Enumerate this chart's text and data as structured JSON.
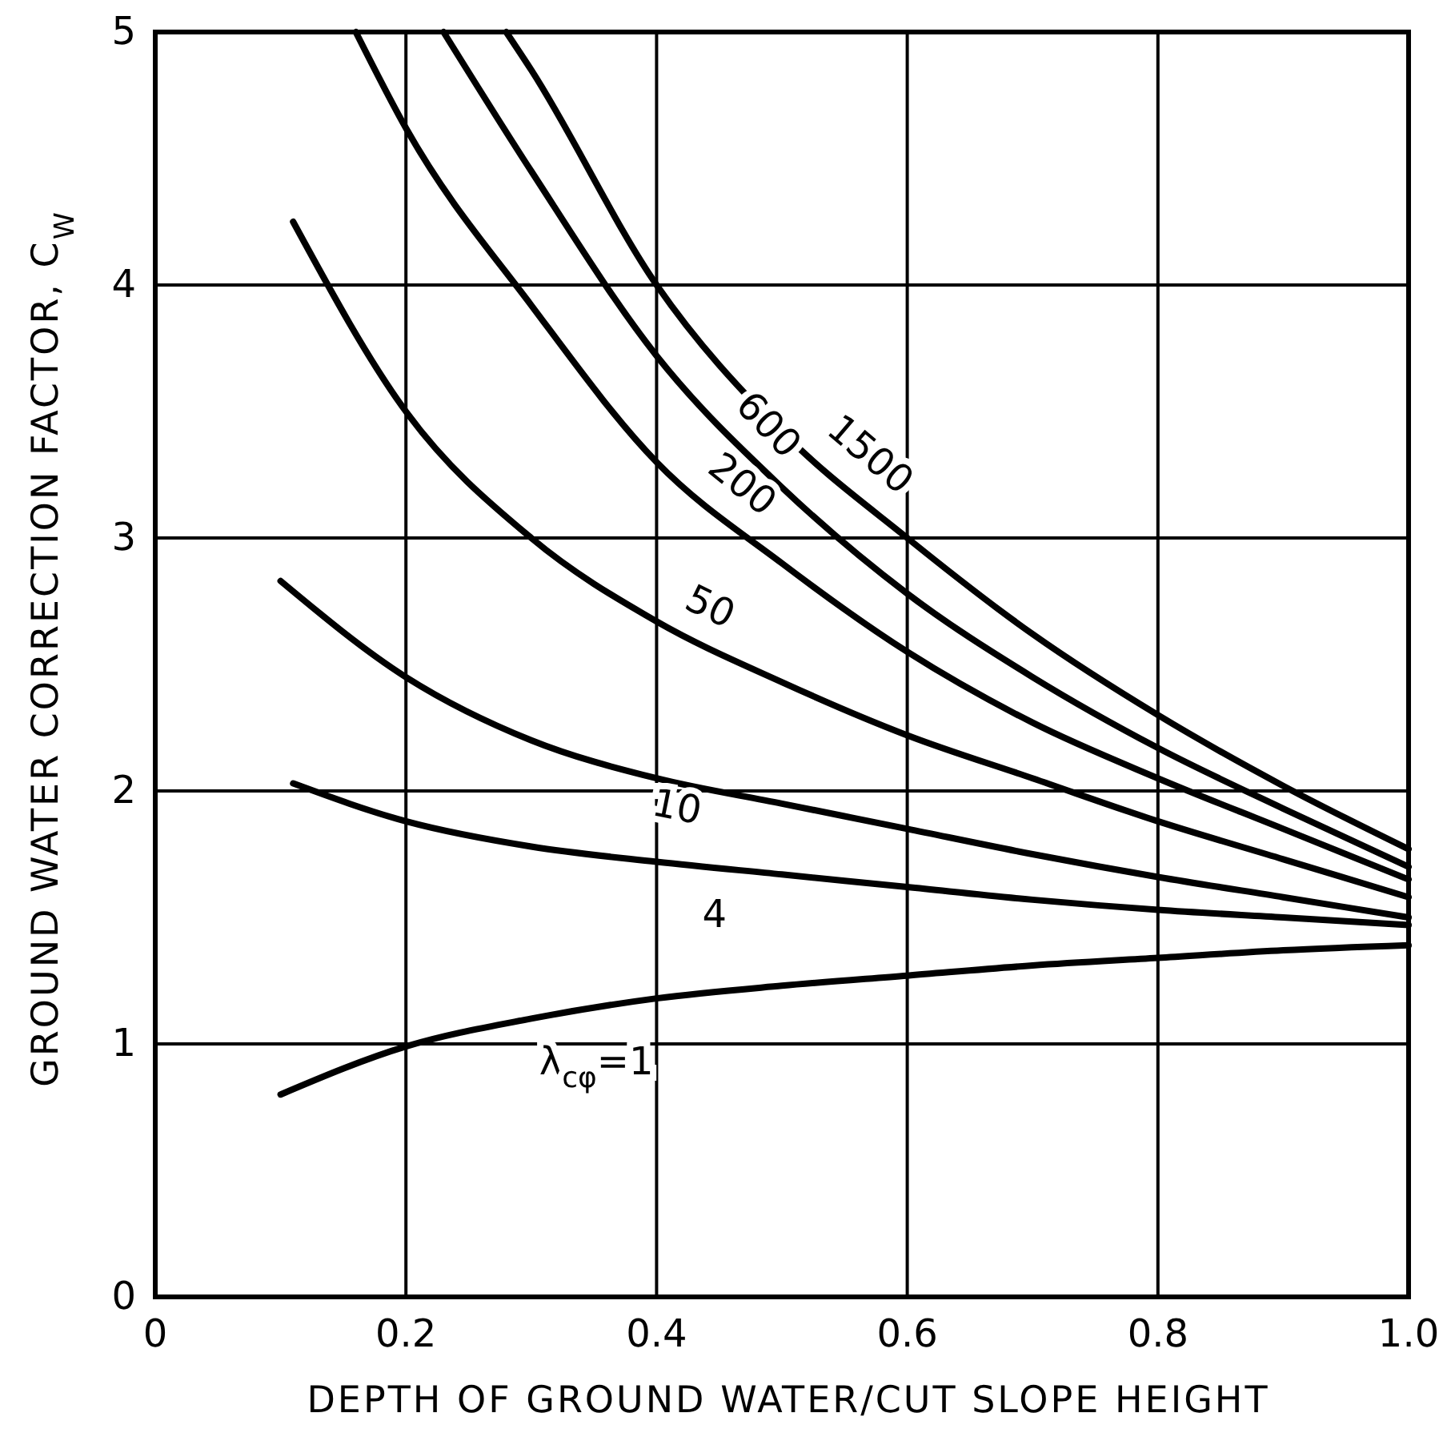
{
  "chart_data": {
    "type": "line",
    "xlabel": "DEPTH OF GROUND WATER/CUT SLOPE HEIGHT",
    "ylabel": "GROUND WATER CORRECTION FACTOR, C$_{W}$",
    "xlim": [
      0,
      1
    ],
    "ylim": [
      0,
      5
    ],
    "xticks": [
      0,
      0.2,
      0.4,
      0.6,
      0.8,
      {
        "value": 1,
        "label": "1.0"
      }
    ],
    "yticks": [
      0,
      1,
      2,
      3,
      4,
      5
    ],
    "grid": true,
    "marker": "none",
    "line_style": "solid",
    "series": [
      {
        "name": "λ$_{cφ}$=1",
        "color": "#000000",
        "x": [
          0.1,
          0.2,
          0.3,
          0.4,
          0.5,
          0.6,
          0.7,
          0.8,
          0.9,
          1.0
        ],
        "values": [
          0.8,
          0.99,
          1.1,
          1.18,
          1.23,
          1.27,
          1.31,
          1.34,
          1.37,
          1.39
        ]
      },
      {
        "name": "4",
        "color": "#000000",
        "x": [
          0.11,
          0.2,
          0.3,
          0.4,
          0.5,
          0.6,
          0.7,
          0.8,
          0.9,
          1.0
        ],
        "values": [
          2.03,
          1.88,
          1.78,
          1.72,
          1.67,
          1.62,
          1.57,
          1.53,
          1.5,
          1.47
        ]
      },
      {
        "name": "10",
        "color": "#000000",
        "x": [
          0.1,
          0.2,
          0.3,
          0.4,
          0.5,
          0.6,
          0.7,
          0.8,
          0.9,
          1.0
        ],
        "values": [
          2.83,
          2.45,
          2.2,
          2.05,
          1.95,
          1.85,
          1.75,
          1.66,
          1.58,
          1.5
        ]
      },
      {
        "name": "50",
        "color": "#000000",
        "x": [
          0.11,
          0.2,
          0.3,
          0.4,
          0.5,
          0.6,
          0.7,
          0.8,
          0.9,
          1.0
        ],
        "values": [
          4.25,
          3.5,
          3.0,
          2.67,
          2.43,
          2.22,
          2.05,
          1.88,
          1.73,
          1.58
        ]
      },
      {
        "name": "200",
        "color": "#000000",
        "x": [
          0.16,
          0.2,
          0.3,
          0.4,
          0.5,
          0.6,
          0.7,
          0.8,
          0.9,
          1.0
        ],
        "values": [
          5,
          4.62,
          3.92,
          3.3,
          2.9,
          2.55,
          2.27,
          2.05,
          1.85,
          1.65
        ]
      },
      {
        "name": "600",
        "color": "#000000",
        "x": [
          0.23,
          0.3,
          0.4,
          0.5,
          0.6,
          0.7,
          0.8,
          0.9,
          1.0
        ],
        "values": [
          5,
          4.45,
          3.72,
          3.2,
          2.78,
          2.45,
          2.17,
          1.93,
          1.7
        ]
      },
      {
        "name": "1500",
        "color": "#000000",
        "x": [
          0.28,
          0.3,
          0.4,
          0.5,
          0.6,
          0.7,
          0.8,
          0.9,
          1.0
        ],
        "values": [
          5,
          4.85,
          4.0,
          3.42,
          3.0,
          2.62,
          2.3,
          2.02,
          1.77
        ]
      }
    ]
  }
}
